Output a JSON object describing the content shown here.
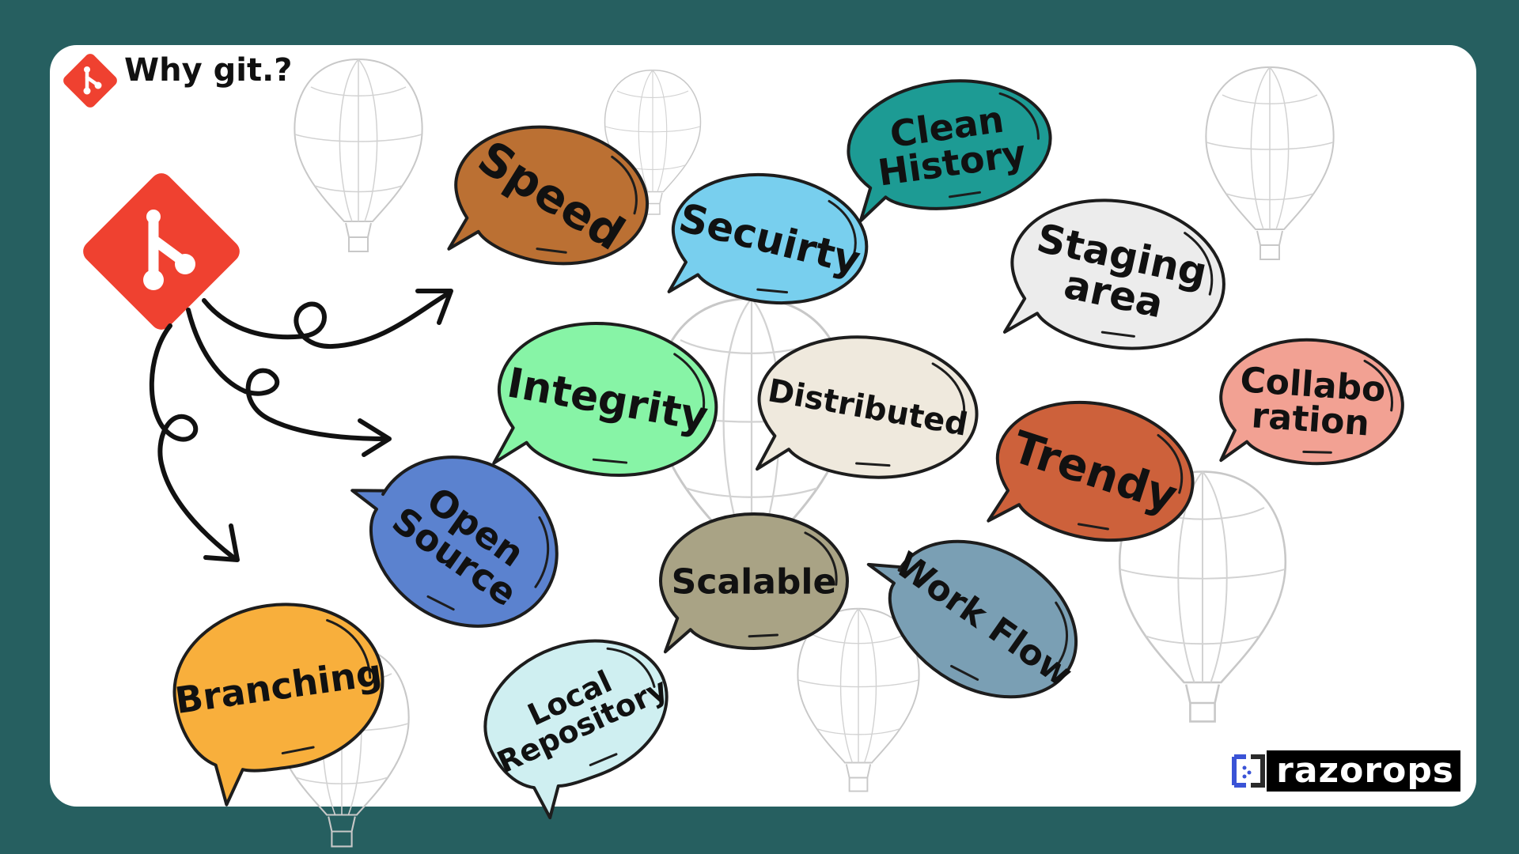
{
  "header": {
    "title": "Why git.?"
  },
  "colors": {
    "background": "#265f60",
    "card": "#ffffff",
    "git_logo": "#ef4130",
    "outline": "#1d1d1d"
  },
  "bubbles": [
    {
      "id": "speed",
      "lines": [
        "Speed"
      ],
      "color": "#bb7033"
    },
    {
      "id": "security",
      "lines": [
        "Secuirty"
      ],
      "color": "#78cfee"
    },
    {
      "id": "clean-history",
      "lines": [
        "Clean",
        "History"
      ],
      "color": "#1d9b94"
    },
    {
      "id": "staging-area",
      "lines": [
        "Staging",
        "area"
      ],
      "color": "#ececec"
    },
    {
      "id": "integrity",
      "lines": [
        "Integrity"
      ],
      "color": "#87f4a6"
    },
    {
      "id": "distributed",
      "lines": [
        "Distributed"
      ],
      "color": "#efe9dd"
    },
    {
      "id": "collaboration",
      "lines": [
        "Collabo",
        "ration"
      ],
      "color": "#f2a193"
    },
    {
      "id": "trendy",
      "lines": [
        "Trendy"
      ],
      "color": "#cd613b"
    },
    {
      "id": "open-source",
      "lines": [
        "Open",
        "Source"
      ],
      "color": "#5b82cf"
    },
    {
      "id": "scalable",
      "lines": [
        "Scalable"
      ],
      "color": "#a9a385"
    },
    {
      "id": "work-flow",
      "lines": [
        "Work Flow"
      ],
      "color": "#7a9fb4"
    },
    {
      "id": "branching",
      "lines": [
        "Branching"
      ],
      "color": "#f8af3c"
    },
    {
      "id": "local-repository",
      "lines": [
        "Local",
        "Repository"
      ],
      "color": "#cfeff1"
    }
  ],
  "brand": {
    "name": "razorops",
    "icon": "razorops-logo-icon"
  },
  "icons": {
    "git": "git-logo-icon",
    "balloon": "hot-air-balloon-icon",
    "arrow": "curly-arrow-icon"
  }
}
